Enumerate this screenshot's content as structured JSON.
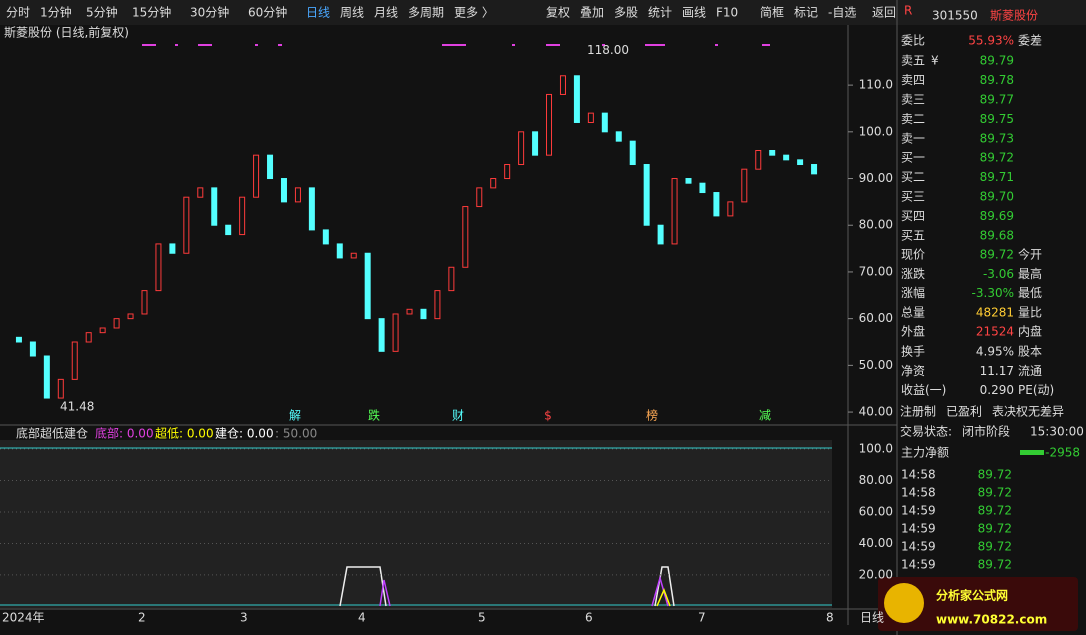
{
  "toolbar": {
    "left": [
      "分时",
      "1分钟",
      "5分钟",
      "15分钟",
      "30分钟",
      "60分钟",
      "日线",
      "周线",
      "月线",
      "多周期",
      "更多 〉"
    ],
    "active": 6,
    "right": [
      "复权",
      "叠加",
      "多股",
      "统计",
      "画线",
      "F10",
      "简框",
      "标记",
      "-自选",
      "返回"
    ]
  },
  "price_chart": {
    "title": "斯菱股份 (日线,前复权)",
    "ylim": [
      38.3,
      121.8
    ],
    "yticks": [
      {
        "value": 110,
        "label": "110.0"
      },
      {
        "value": 100,
        "label": "100.0"
      },
      {
        "value": 90,
        "label": "90.00"
      },
      {
        "value": 80,
        "label": "80.00"
      },
      {
        "value": 70,
        "label": "70.00"
      },
      {
        "value": 60,
        "label": "60.00"
      },
      {
        "value": 50,
        "label": "50.00"
      },
      {
        "value": 40,
        "label": "40.00"
      }
    ],
    "closes": [
      56,
      55,
      52,
      43,
      47,
      55,
      57,
      58,
      60,
      61,
      66,
      76,
      74,
      86,
      88,
      80,
      78,
      86,
      95,
      90,
      85,
      88,
      79,
      76,
      73,
      74,
      60,
      53,
      61,
      62,
      60,
      66,
      71,
      84,
      88,
      90,
      93,
      100,
      95,
      108,
      112,
      102,
      104,
      100,
      98,
      93,
      80,
      76,
      90,
      89,
      87,
      82,
      85,
      92,
      96,
      95,
      94,
      93,
      91
    ],
    "low_label": {
      "value": 41.48,
      "label": "41.48"
    },
    "high_label": {
      "value": 118,
      "label": "118.00"
    },
    "events": [
      "解",
      "跌",
      "财",
      "$",
      "榜",
      "减"
    ]
  },
  "indicator": {
    "title": "底部超低建仓",
    "items": [
      "底部: 0.00",
      "超低: 0.00",
      "建仓: 0.00",
      ": 50.00"
    ],
    "ylim": [
      -1,
      105.7
    ],
    "yticks": [
      {
        "value": 100,
        "label": "100.0"
      },
      {
        "value": 80,
        "label": "80.00"
      },
      {
        "value": 60,
        "label": "60.00"
      },
      {
        "value": 40,
        "label": "40.00"
      },
      {
        "value": 20,
        "label": "20.00"
      }
    ]
  },
  "x_axis": [
    "2024年",
    "2",
    "3",
    "4",
    "5",
    "6",
    "7",
    "8"
  ],
  "period_label": "日线",
  "panel": {
    "badge": "R",
    "code": "301550",
    "name": "斯菱股份",
    "weibi": [
      "委比",
      "55.93%",
      "委差"
    ],
    "yen": "¥",
    "asks": [
      [
        "卖五",
        "89.79"
      ],
      [
        "卖四",
        "89.78"
      ],
      [
        "卖三",
        "89.77"
      ],
      [
        "卖二",
        "89.75"
      ],
      [
        "卖一",
        "89.73"
      ]
    ],
    "bids": [
      [
        "买一",
        "89.72"
      ],
      [
        "买二",
        "89.71"
      ],
      [
        "买三",
        "89.70"
      ],
      [
        "买四",
        "89.69"
      ],
      [
        "买五",
        "89.68"
      ]
    ],
    "quote": [
      [
        "现价",
        "89.72",
        "今开"
      ],
      [
        "涨跌",
        "-3.06",
        "最高"
      ],
      [
        "涨幅",
        "-3.30%",
        "最低"
      ],
      [
        "总量",
        "48281",
        "量比"
      ],
      [
        "外盘",
        "21524",
        "内盘"
      ]
    ],
    "info": [
      [
        "换手",
        "4.95%",
        "股本"
      ],
      [
        "净资",
        "11.17",
        "流通"
      ],
      [
        "收益(一)",
        "0.290",
        "PE(动)"
      ]
    ],
    "tags": [
      "注册制",
      "已盈利",
      "表决权无差异"
    ],
    "status": [
      "交易状态:",
      "闭市阶段",
      "15:30:00"
    ],
    "main_flow": [
      "主力净额",
      "-2958"
    ],
    "ticks": [
      [
        "14:58",
        "89.72"
      ],
      [
        "14:58",
        "89.72"
      ],
      [
        "14:59",
        "89.72"
      ],
      [
        "14:59",
        "89.72"
      ],
      [
        "14:59",
        "89.72"
      ],
      [
        "14:59",
        "89.72"
      ]
    ]
  },
  "logo": {
    "name": "分析家公式网",
    "url": "www.70822.com"
  }
}
